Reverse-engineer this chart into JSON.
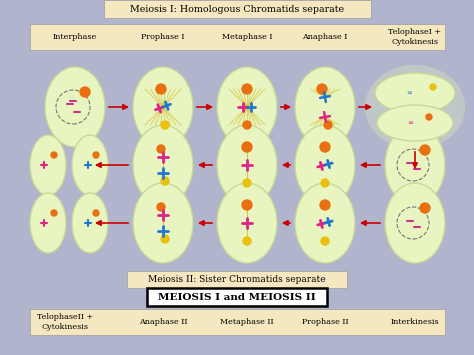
{
  "background_color": "#b0b4cc",
  "header_box_color": "#f5e8c0",
  "title_top": "Meiosis I: Homologous Chromatids separate",
  "title_bottom": "Meiosis II: Sister Chromatids separate",
  "title_main": "MEIOSIS I and MEIOSIS II",
  "top_labels": [
    "Interphase",
    "Prophase I",
    "Metaphase I",
    "Anaphase I",
    "TelophaseI +\nCytokinesis"
  ],
  "bottom_labels": [
    "TelophaseII +\nCytokinesis",
    "Anaphase II",
    "Metaphase II",
    "Prophase II",
    "Interkinesis"
  ],
  "cell_color": "#e8f5c0",
  "cell_edge_color": "#c8d898",
  "arrow_color": "#cc0000",
  "figsize": [
    4.74,
    3.55
  ],
  "dpi": 100
}
